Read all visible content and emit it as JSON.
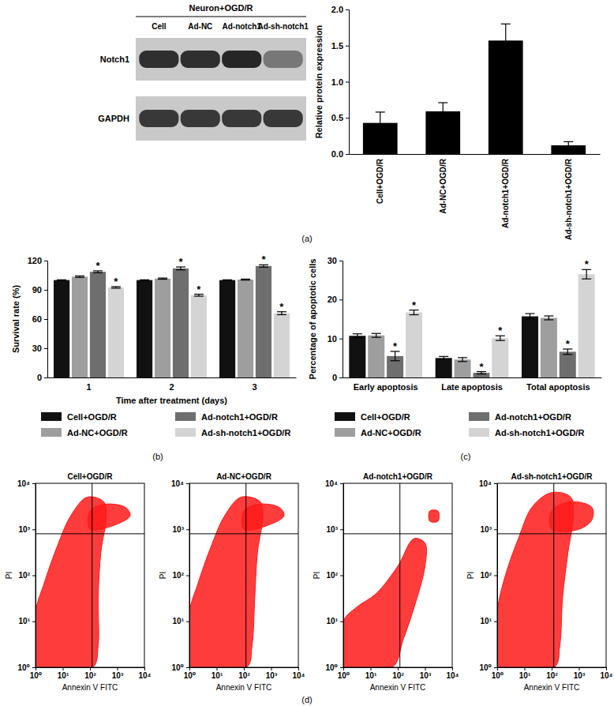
{
  "chart_data": [
    {
      "type": "blot",
      "header": "Neuron+OGD/R",
      "lanes": [
        "Cell",
        "Ad-NC",
        "Ad-notch1",
        "Ad-sh-notch1"
      ],
      "rows": [
        {
          "name": "Notch1",
          "values": [
            0.85,
            0.85,
            0.9,
            0.45
          ]
        },
        {
          "name": "GAPDH",
          "values": [
            0.8,
            0.8,
            0.8,
            0.8
          ]
        }
      ]
    },
    {
      "type": "bar",
      "panel_label": "(a)",
      "y_label": "Relative protein expression",
      "categories": [
        "Cell+OGD/R",
        "Ad-NC+OGD/R",
        "Ad-notch1+OGD/R",
        "Ad-sh-notch1+OGD/R"
      ],
      "values": [
        0.43,
        0.59,
        1.57,
        0.12
      ],
      "errors": [
        0.15,
        0.12,
        0.23,
        0.05
      ],
      "color": "#000000",
      "ylim": [
        0,
        2
      ],
      "yticks": [
        {
          "value": 0,
          "label": "0.0"
        },
        0.5,
        {
          "value": 1,
          "label": "1.0"
        },
        1.5,
        {
          "value": 2,
          "label": "2.0"
        }
      ]
    },
    {
      "type": "bar",
      "panel_label": "(b)",
      "y_label": "Survival rate (%)",
      "x_label": "Time after treatment (days)",
      "categories": [
        "1",
        "2",
        "3"
      ],
      "series": [
        {
          "name": "Cell+OGD/R",
          "color": "#111111",
          "values": [
            100,
            100,
            100
          ],
          "errors": [
            0.3,
            0.3,
            0.3
          ]
        },
        {
          "name": "Ad-NC+OGD/R",
          "color": "#9e9e9e",
          "values": [
            103.5,
            101.5,
            100.5
          ],
          "errors": [
            0.8,
            0.6,
            0.5
          ]
        },
        {
          "name": "Ad-notch1+OGD/R",
          "color": "#6e6e6e",
          "values": [
            108.5,
            112,
            114.5
          ],
          "errors": [
            1,
            1.5,
            1.2
          ],
          "significance": [
            "*",
            "*",
            "*"
          ]
        },
        {
          "name": "Ad-sh-notch1+OGD/R",
          "color": "#d4d4d4",
          "values": [
            92.5,
            84.5,
            66
          ],
          "errors": [
            0.8,
            1,
            1.5
          ],
          "significance": [
            "*",
            "*",
            "*"
          ]
        }
      ],
      "ylim": [
        0,
        120
      ],
      "yticks": [
        0,
        30,
        60,
        90,
        120
      ],
      "legend": "bottom"
    },
    {
      "type": "bar",
      "panel_label": "(c)",
      "y_label": "Percentage of apoptotic cells",
      "categories": [
        "Early apoptosis",
        "Late apoptosis",
        "Total apoptosis"
      ],
      "series": [
        {
          "name": "Cell+OGD/R",
          "color": "#111111",
          "values": [
            10.7,
            5.0,
            15.7
          ],
          "errors": [
            0.5,
            0.4,
            0.7
          ]
        },
        {
          "name": "Ad-NC+OGD/R",
          "color": "#9e9e9e",
          "values": [
            10.8,
            4.6,
            15.3
          ],
          "errors": [
            0.5,
            0.5,
            0.5
          ]
        },
        {
          "name": "Ad-notch1+OGD/R",
          "color": "#6e6e6e",
          "values": [
            5.5,
            1.2,
            6.6
          ],
          "errors": [
            1.2,
            0.3,
            0.7
          ],
          "significance": [
            "*",
            "*",
            "*"
          ]
        },
        {
          "name": "Ad-sh-notch1+OGD/R",
          "color": "#d4d4d4",
          "values": [
            16.7,
            10.1,
            26.5
          ],
          "errors": [
            0.6,
            0.6,
            1.2
          ],
          "significance": [
            "*",
            "*",
            "*"
          ]
        }
      ],
      "ylim": [
        0,
        30
      ],
      "yticks": [
        0,
        10,
        20,
        30
      ],
      "legend": "bottom"
    },
    {
      "type": "scatter",
      "panel_label": "(d)",
      "title": "Cell+OGD/R",
      "x_label": "Annexin V FITC",
      "y_label": "PI",
      "log": true,
      "color": "#ff1a1a",
      "xlim": [
        1,
        10000
      ],
      "ylim": [
        1,
        10000
      ],
      "xticks": [
        {
          "value": 1,
          "label": "10⁰"
        },
        {
          "value": 10,
          "label": "10¹"
        },
        {
          "value": 100,
          "label": "10²"
        },
        {
          "value": 1000,
          "label": "10³"
        },
        {
          "value": 10000,
          "label": "10⁴"
        }
      ],
      "yticks": [
        {
          "value": 1,
          "label": "10⁰"
        },
        {
          "value": 10,
          "label": "10¹"
        },
        {
          "value": 100,
          "label": "10²"
        },
        {
          "value": 1000,
          "label": "10³"
        },
        {
          "value": 10000,
          "label": "10⁴"
        }
      ],
      "gates": {
        "x": 120,
        "y": 800
      },
      "regions": [
        {
          "x": [
            1,
            126,
            200,
            200,
            251,
            398,
            316,
            79,
            20,
            6,
            2,
            1
          ],
          "y": [
            1,
            1,
            3,
            32,
            316,
            2000,
            3981,
            5012,
            2000,
            398,
            63,
            16
          ]
        },
        {
          "x": [
            100,
            1000,
            3000,
            2000,
            316,
            100
          ],
          "y": [
            1000,
            1300,
            2000,
            3000,
            3500,
            2500
          ]
        }
      ]
    },
    {
      "type": "scatter",
      "title": "Ad-NC+OGD/R",
      "x_label": "Annexin V FITC",
      "y_label": "PI",
      "log": true,
      "color": "#ff1a1a",
      "xlim": [
        1,
        10000
      ],
      "ylim": [
        1,
        10000
      ],
      "xticks": [
        {
          "value": 1,
          "label": "10⁰"
        },
        {
          "value": 10,
          "label": "10¹"
        },
        {
          "value": 100,
          "label": "10²"
        },
        {
          "value": 1000,
          "label": "10³"
        },
        {
          "value": 10000,
          "label": "10⁴"
        }
      ],
      "yticks": [
        {
          "value": 1,
          "label": "10⁰"
        },
        {
          "value": 10,
          "label": "10¹"
        },
        {
          "value": 100,
          "label": "10²"
        },
        {
          "value": 1000,
          "label": "10³"
        },
        {
          "value": 10000,
          "label": "10⁴"
        }
      ],
      "gates": {
        "x": 120,
        "y": 800
      },
      "regions": [
        {
          "x": [
            1,
            126,
            200,
            251,
            316,
            501,
            398,
            79,
            20,
            6,
            2,
            1
          ],
          "y": [
            1,
            1,
            3,
            32,
            316,
            2000,
            4000,
            5012,
            2000,
            398,
            63,
            16
          ]
        },
        {
          "x": [
            100,
            1000,
            3000,
            2000,
            316,
            100
          ],
          "y": [
            1000,
            1300,
            2000,
            3000,
            3500,
            2500
          ]
        }
      ]
    },
    {
      "type": "scatter",
      "title": "Ad-notch1+OGD/R",
      "x_label": "Annexin V FITC",
      "y_label": "PI",
      "log": true,
      "color": "#ff1a1a",
      "xlim": [
        1,
        10000
      ],
      "ylim": [
        1,
        10000
      ],
      "xticks": [
        {
          "value": 1,
          "label": "10⁰"
        },
        {
          "value": 10,
          "label": "10¹"
        },
        {
          "value": 100,
          "label": "10²"
        },
        {
          "value": 1000,
          "label": "10³"
        },
        {
          "value": 10000,
          "label": "10⁴"
        }
      ],
      "yticks": [
        {
          "value": 1,
          "label": "10⁰"
        },
        {
          "value": 10,
          "label": "10¹"
        },
        {
          "value": 100,
          "label": "10²"
        },
        {
          "value": 1000,
          "label": "10³"
        },
        {
          "value": 10000,
          "label": "10⁴"
        }
      ],
      "gates": {
        "x": 120,
        "y": 800
      },
      "regions": [
        {
          "x": [
            1,
            63,
            158,
            398,
            1000,
            1000,
            398,
            100,
            16,
            3,
            1
          ],
          "y": [
            1,
            1,
            4,
            20,
            158,
            501,
            631,
            158,
            40,
            20,
            10
          ]
        },
        {
          "x": [
            1500,
            3000,
            3000,
            1500
          ],
          "y": [
            1500,
            1500,
            2500,
            2500
          ]
        }
      ]
    },
    {
      "type": "scatter",
      "title": "Ad-sh-notch1+OGD/R",
      "x_label": "Annexin V FITC",
      "y_label": "PI",
      "log": true,
      "color": "#ff1a1a",
      "xlim": [
        1,
        10000
      ],
      "ylim": [
        1,
        10000
      ],
      "xticks": [
        {
          "value": 1,
          "label": "10⁰"
        },
        {
          "value": 10,
          "label": "10¹"
        },
        {
          "value": 100,
          "label": "10²"
        },
        {
          "value": 1000,
          "label": "10³"
        },
        {
          "value": 10000,
          "label": "10⁴"
        }
      ],
      "yticks": [
        {
          "value": 1,
          "label": "10⁰"
        },
        {
          "value": 10,
          "label": "10¹"
        },
        {
          "value": 100,
          "label": "10²"
        },
        {
          "value": 1000,
          "label": "10³"
        },
        {
          "value": 10000,
          "label": "10⁴"
        }
      ],
      "gates": {
        "x": 120,
        "y": 800
      },
      "regions": [
        {
          "x": [
            1,
            126,
            200,
            251,
            398,
            631,
            501,
            100,
            20,
            6,
            2,
            1
          ],
          "y": [
            1,
            1,
            3,
            32,
            316,
            2000,
            5012,
            6310,
            3162,
            631,
            100,
            16
          ]
        },
        {
          "x": [
            100,
            1000,
            3000,
            3000,
            501,
            100
          ],
          "y": [
            1000,
            1000,
            1600,
            3000,
            3981,
            2500
          ]
        }
      ]
    }
  ]
}
